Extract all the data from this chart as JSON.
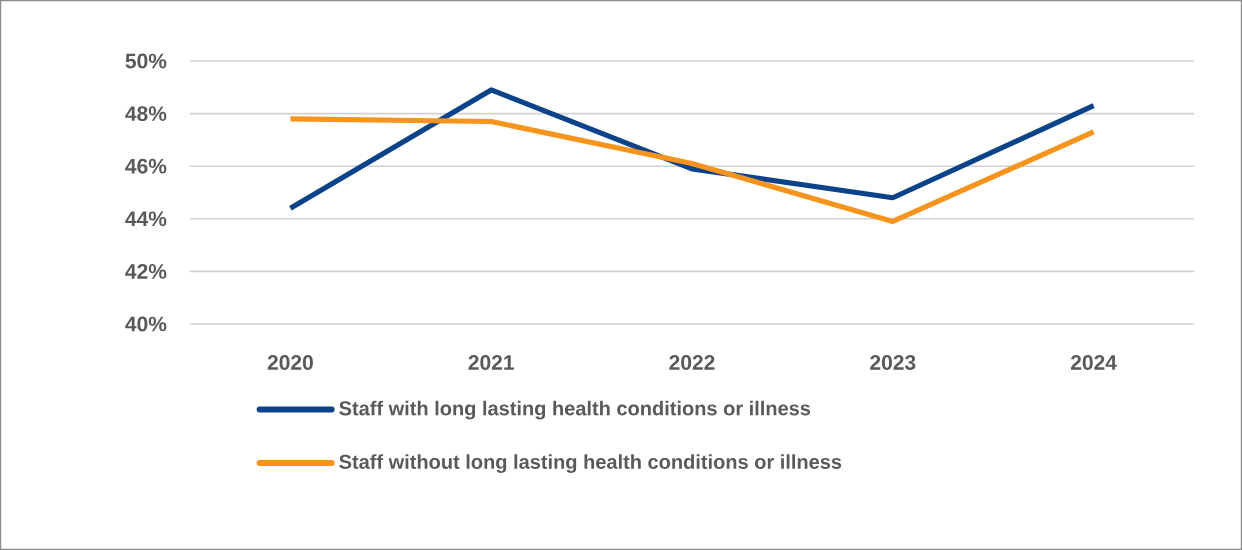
{
  "chart_data": {
    "type": "line",
    "categories": [
      "2020",
      "2021",
      "2022",
      "2023",
      "2024"
    ],
    "series": [
      {
        "name": "Staff with long lasting health conditions or illness",
        "color": "#0a438a",
        "values": [
          44.4,
          48.9,
          45.9,
          44.8,
          48.3
        ]
      },
      {
        "name": "Staff without long lasting health conditions or illness",
        "color": "#f7941d",
        "values": [
          47.8,
          47.7,
          46.1,
          43.9,
          47.3
        ]
      }
    ],
    "ylim": [
      40,
      50
    ],
    "yticks": [
      {
        "value": 40,
        "label": "40%"
      },
      {
        "value": 42,
        "label": "42%"
      },
      {
        "value": 44,
        "label": "44%"
      },
      {
        "value": 46,
        "label": "46%"
      },
      {
        "value": 48,
        "label": "48%"
      },
      {
        "value": 50,
        "label": "50%"
      }
    ],
    "grid": "y",
    "legend": "bottom",
    "marker": "none",
    "line_style": "solid"
  }
}
